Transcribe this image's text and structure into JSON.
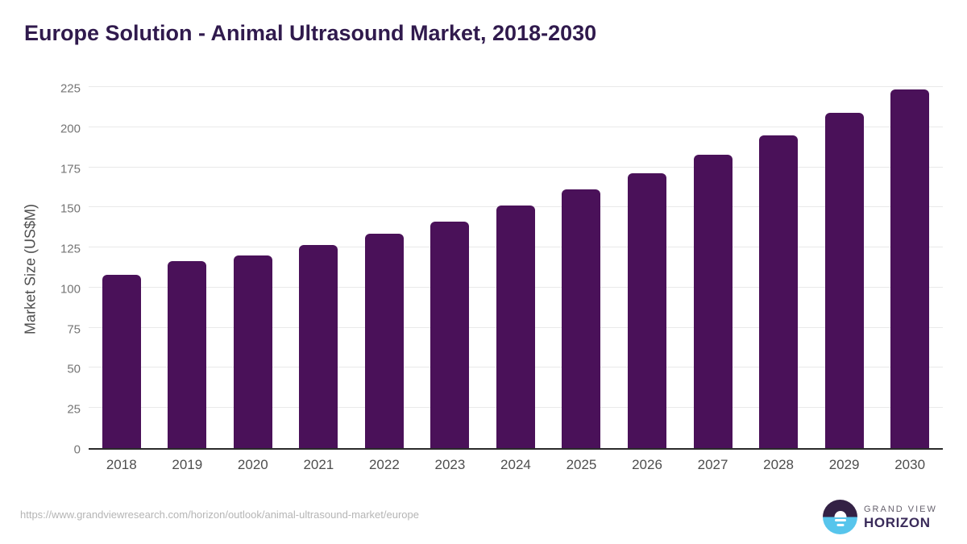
{
  "header": {
    "title": "Europe Solution - Animal Ultrasound Market, 2018-2030"
  },
  "footer": {
    "source_url": "https://www.grandviewresearch.com/horizon/outlook/animal-ultrasound-market/europe",
    "logo": {
      "top_text": "GRAND VIEW",
      "bottom_text": "HORIZON"
    }
  },
  "colors": {
    "bar": "#4a1159",
    "title": "#301a4d",
    "gridline": "#e9e9e9",
    "axis_line": "#2b2b2b",
    "ytick_label": "#757575",
    "xtick_label": "#4d4d4d",
    "axis_title": "#4f4f4f",
    "url": "#b5b5b5",
    "logo_dark": "#332145",
    "logo_blue": "#57c5ec",
    "logo_grand_view": "#66616d",
    "logo_horizon": "#3a2b5a"
  },
  "chart_data": {
    "type": "bar",
    "title": "Europe Solution - Animal Ultrasound Market, 2018-2030",
    "categories": [
      "2018",
      "2019",
      "2020",
      "2021",
      "2022",
      "2023",
      "2024",
      "2025",
      "2026",
      "2027",
      "2028",
      "2029",
      "2030"
    ],
    "values": [
      108.5,
      117,
      120.5,
      127,
      134,
      142,
      152,
      162,
      172,
      183.5,
      196,
      210,
      224.5
    ],
    "xlabel": "",
    "ylabel": "Market Size (US$M)",
    "ylim": [
      0,
      225
    ],
    "ytick_step": 25,
    "yticks": [
      0,
      25,
      50,
      75,
      100,
      125,
      150,
      175,
      200,
      225
    ],
    "grid": true,
    "legend": false,
    "bar_corner_radius": 6
  }
}
